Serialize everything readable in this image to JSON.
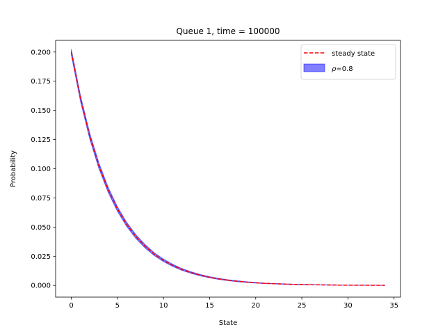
{
  "chart_data": {
    "type": "area",
    "title": "Queue 1, time = 100000",
    "xlabel": "State",
    "ylabel": "Probability",
    "xlim": [
      -1.7,
      35.7
    ],
    "ylim": [
      -0.01,
      0.21
    ],
    "xticks": [
      0,
      5,
      10,
      15,
      20,
      25,
      30,
      35
    ],
    "yticks": [
      0.0,
      0.025,
      0.05,
      0.075,
      0.1,
      0.125,
      0.15,
      0.175,
      0.2
    ],
    "ytick_labels": [
      "0.000",
      "0.025",
      "0.050",
      "0.075",
      "0.100",
      "0.125",
      "0.150",
      "0.175",
      "0.200"
    ],
    "legend_position": "top-right",
    "series": [
      {
        "name": "steady state",
        "style": "dashed-line",
        "color": "#ff0000",
        "x": [
          0,
          1,
          2,
          3,
          4,
          5,
          6,
          7,
          8,
          9,
          10,
          11,
          12,
          13,
          14,
          15,
          16,
          17,
          18,
          19,
          20,
          21,
          22,
          23,
          24,
          25,
          26,
          27,
          28,
          29,
          30,
          31,
          32,
          33,
          34
        ],
        "values": [
          0.2,
          0.16,
          0.128,
          0.1024,
          0.0819,
          0.0655,
          0.0524,
          0.0419,
          0.0336,
          0.0268,
          0.0215,
          0.0172,
          0.0137,
          0.011,
          0.0088,
          0.007,
          0.0056,
          0.0045,
          0.0036,
          0.0029,
          0.0023,
          0.0018,
          0.0015,
          0.0012,
          0.0009,
          0.0008,
          0.0006,
          0.0005,
          0.0004,
          0.0003,
          0.0002,
          0.0002,
          0.0002,
          0.0001,
          0.0001
        ]
      },
      {
        "name": "ρ=0.8",
        "label_parts": [
          "ρ",
          "=0.8"
        ],
        "style": "band",
        "color": "#0000ff",
        "alpha": 0.5,
        "x": [
          0,
          1,
          2,
          3,
          4,
          5,
          6,
          7,
          8,
          9,
          10,
          11,
          12,
          13,
          14,
          15,
          16,
          17,
          18,
          19,
          20,
          21,
          22,
          23,
          24,
          25,
          26,
          27,
          28,
          29,
          30,
          31,
          32,
          33,
          34
        ],
        "lower": [
          0.1975,
          0.1575,
          0.1255,
          0.1,
          0.0797,
          0.0635,
          0.0506,
          0.0403,
          0.0321,
          0.0256,
          0.0204,
          0.0163,
          0.0129,
          0.0103,
          0.0082,
          0.0065,
          0.0051,
          0.0041,
          0.0032,
          0.0026,
          0.002,
          0.0016,
          0.0013,
          0.001,
          0.0008,
          0.0006,
          0.0005,
          0.0004,
          0.0003,
          0.0002,
          0.0002,
          0.0001,
          0.0001,
          0.0001,
          0.0
        ],
        "upper": [
          0.2025,
          0.1625,
          0.1305,
          0.1048,
          0.0841,
          0.0675,
          0.0542,
          0.0435,
          0.0351,
          0.028,
          0.0226,
          0.0181,
          0.0145,
          0.0117,
          0.0094,
          0.0075,
          0.0061,
          0.0049,
          0.004,
          0.0032,
          0.0026,
          0.002,
          0.0017,
          0.0014,
          0.0011,
          0.0009,
          0.0007,
          0.0006,
          0.0005,
          0.0004,
          0.0003,
          0.0003,
          0.0003,
          0.0002,
          0.0002
        ]
      }
    ]
  }
}
